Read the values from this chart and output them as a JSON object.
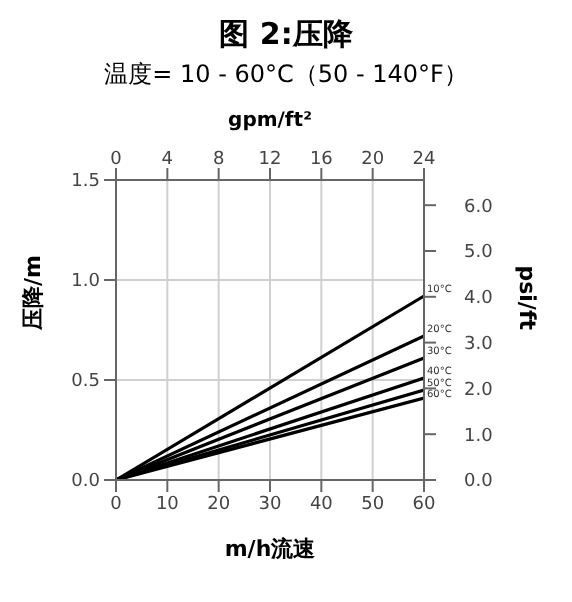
{
  "chart_data": {
    "type": "line",
    "title": "图 2:压降",
    "subtitle": "温度= 10 - 60°C（50 - 140°F）",
    "xlabel": "m/h流速",
    "ylabel": "压降/m",
    "x2label": "gpm/ft²",
    "y2label": "psi/ft",
    "x": [
      0,
      60
    ],
    "series": [
      {
        "name": "10°C",
        "color": "#000000",
        "values": [
          0,
          0.92
        ]
      },
      {
        "name": "20°C",
        "color": "#000000",
        "values": [
          0,
          0.72
        ]
      },
      {
        "name": "30°C",
        "color": "#000000",
        "values": [
          0,
          0.61
        ]
      },
      {
        "name": "40°C",
        "color": "#000000",
        "values": [
          0,
          0.51
        ]
      },
      {
        "name": "50°C",
        "color": "#000000",
        "values": [
          0,
          0.45
        ]
      },
      {
        "name": "60°C",
        "color": "#000000",
        "values": [
          0,
          0.41
        ]
      }
    ],
    "xlim": [
      0,
      60
    ],
    "xticks": [
      0,
      10,
      20,
      30,
      40,
      50,
      60
    ],
    "x2lim": [
      0,
      24
    ],
    "x2ticks": [
      0,
      4,
      8,
      12,
      16,
      20,
      24
    ],
    "ylim": [
      0,
      1.5
    ],
    "yticks": [
      {
        "value": 0,
        "label": "0.0"
      },
      {
        "value": 0.5,
        "label": "0.5"
      },
      {
        "value": 1,
        "label": "1.0"
      },
      {
        "value": 1.5,
        "label": "1.5"
      }
    ],
    "y2lim": [
      0,
      6.55
    ],
    "y2ticks": [
      {
        "value": 0,
        "label": "0.0"
      },
      {
        "value": 1,
        "label": "1.0"
      },
      {
        "value": 2,
        "label": "2.0"
      },
      {
        "value": 3,
        "label": "3.0"
      },
      {
        "value": 4,
        "label": "4.0"
      },
      {
        "value": 5,
        "label": "5.0"
      },
      {
        "value": 6,
        "label": "6.0"
      }
    ],
    "grid": true,
    "legend": false,
    "marker": "none",
    "line_style": "solid"
  }
}
